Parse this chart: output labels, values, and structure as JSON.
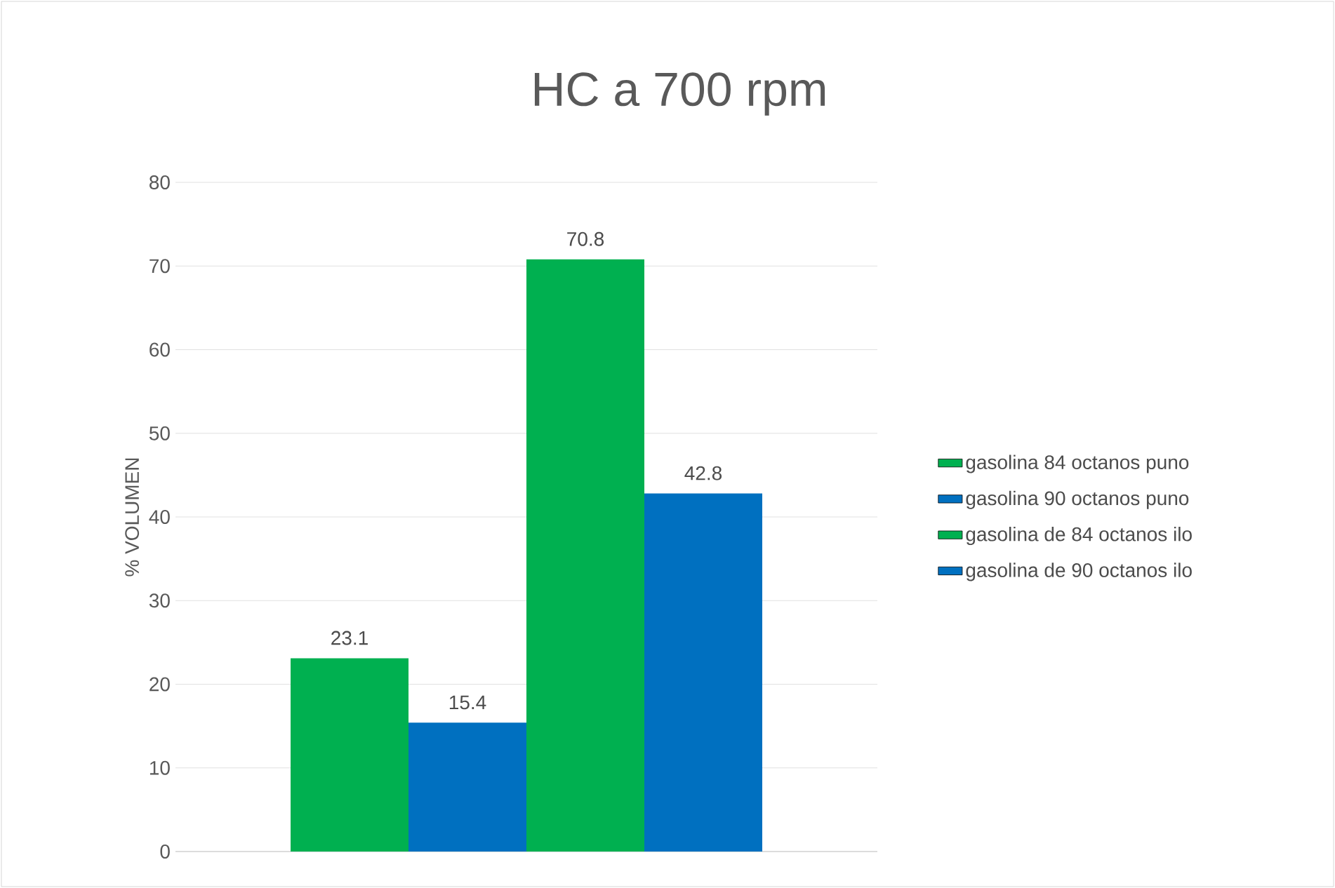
{
  "chart_data": {
    "type": "bar",
    "title": "HC a 700 rpm",
    "ylabel": "% VOLUMEN",
    "categories": [
      null
    ],
    "series": [
      {
        "name": "gasolina 84 octanos puno",
        "color": "#00b050",
        "values": [
          23.1
        ]
      },
      {
        "name": "gasolina 90 octanos puno",
        "color": "#0070c0",
        "values": [
          15.4
        ]
      },
      {
        "name": "gasolina de 84 octanos ilo",
        "color": "#00b050",
        "values": [
          70.8
        ]
      },
      {
        "name": "gasolina de 90 octanos ilo",
        "color": "#0070c0",
        "values": [
          42.8
        ]
      }
    ],
    "ylim": [
      0,
      80
    ],
    "yticks": [
      0,
      10,
      20,
      30,
      40,
      50,
      60,
      70,
      80
    ],
    "grid": "y",
    "legend": "right",
    "data_labels": true
  }
}
